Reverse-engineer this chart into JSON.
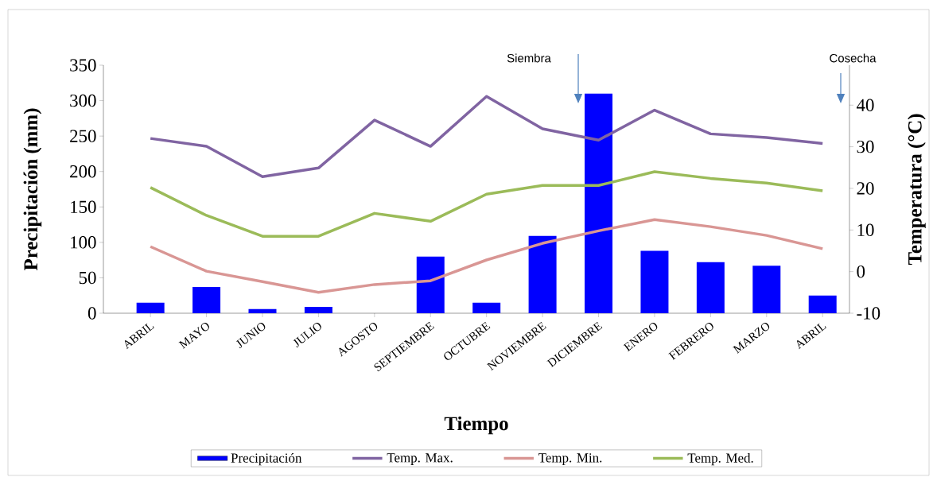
{
  "chart_data": {
    "type": "bar",
    "xlabel": "Tiempo",
    "ylabel": "Precipitación (mm)",
    "y2label": "Temperatura (°C)",
    "categories": [
      "ABRIL",
      "MAYO",
      "JUNIO",
      "JULIO",
      "AGOSTO",
      "SEPTIEMBRE",
      "OCTUBRE",
      "NOVIEMBRE",
      "DICIEMBRE",
      "ENERO",
      "FEBRERO",
      "MARZO",
      "ABRIL"
    ],
    "series": [
      {
        "name": "Precipitación",
        "color": "#0000ff",
        "values": [
          15,
          37,
          6,
          9,
          0,
          80,
          15,
          109,
          310,
          88,
          72,
          67,
          25
        ]
      },
      {
        "name": "Temp. Max.",
        "type": "line",
        "axis": "y2",
        "color": "#8064a2",
        "values": [
          32.0,
          30.1,
          22.8,
          24.9,
          36.4,
          30.1,
          42.1,
          34.3,
          31.6,
          38.8,
          33.1,
          32.2,
          30.8
        ]
      },
      {
        "name": "Temp. Min.",
        "type": "line",
        "axis": "y2",
        "color": "#d99694",
        "values": [
          6.0,
          0.1,
          -2.4,
          -5.0,
          -3.1,
          -2.2,
          2.8,
          6.8,
          9.8,
          12.5,
          10.8,
          8.7,
          5.5
        ]
      },
      {
        "name": "Temp. Med.",
        "type": "line",
        "axis": "y2",
        "color": "#9bbb59",
        "values": [
          20.2,
          13.5,
          8.5,
          8.5,
          14.0,
          12.1,
          18.6,
          20.7,
          20.7,
          24.0,
          22.4,
          21.3,
          19.4
        ]
      }
    ],
    "ylim": [
      0,
      350
    ],
    "yticks": [
      0,
      50,
      100,
      150,
      200,
      250,
      300,
      350
    ],
    "y2lim": [
      -10,
      49.6
    ],
    "y2ticks": [
      -10,
      0,
      10,
      20,
      30,
      40
    ],
    "annotations": [
      "Siembra",
      "Cosecha"
    ],
    "legend": "bottom",
    "grid": false
  }
}
